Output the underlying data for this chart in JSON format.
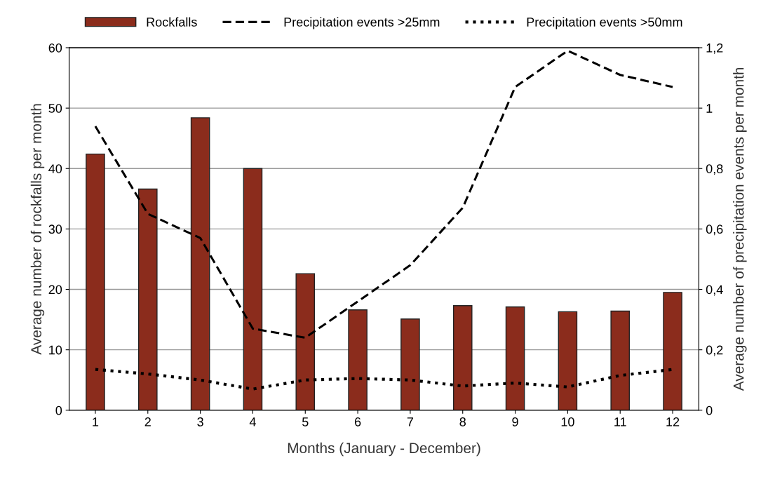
{
  "chart_data": {
    "type": "bar",
    "xlabel": "Months (January - December)",
    "ylabel": "Average number of rockfalls per month",
    "y2label": "Average number of precipitation events per month",
    "categories": [
      "1",
      "2",
      "3",
      "4",
      "5",
      "6",
      "7",
      "8",
      "9",
      "10",
      "11",
      "12"
    ],
    "series": [
      {
        "name": "Rockfalls",
        "color": "#8b2c1c",
        "values": [
          42.4,
          36.6,
          48.4,
          40,
          22.6,
          16.6,
          15.1,
          17.3,
          17.1,
          16.3,
          16.4,
          19.5
        ]
      },
      {
        "name": "Precipitation events >25mm",
        "type": "line",
        "axis": "y2",
        "line_style": "dashed",
        "color": "#000000",
        "values": [
          0.94,
          0.65,
          0.57,
          0.27,
          0.24,
          0.36,
          0.48,
          0.67,
          1.07,
          1.19,
          1.11,
          1.07
        ]
      },
      {
        "name": "Precipitation events >50mm",
        "type": "line",
        "axis": "y2",
        "line_style": "dotted",
        "color": "#000000",
        "values": [
          0.135,
          0.12,
          0.1,
          0.07,
          0.1,
          0.105,
          0.1,
          0.08,
          0.09,
          0.077,
          0.115,
          0.135
        ]
      }
    ],
    "ylim": [
      0,
      60
    ],
    "yticks": [
      0,
      10,
      20,
      30,
      40,
      50,
      60
    ],
    "y2lim": [
      0,
      1.2
    ],
    "y2ticks": [
      0,
      {
        "value": 0.2,
        "label": "0,2"
      },
      {
        "value": 0.4,
        "label": "0,4"
      },
      {
        "value": 0.6,
        "label": "0,6"
      },
      {
        "value": 0.8,
        "label": "0,8"
      },
      1,
      {
        "value": 1.2,
        "label": "1,2"
      }
    ],
    "grid": "y",
    "legend": "top"
  }
}
